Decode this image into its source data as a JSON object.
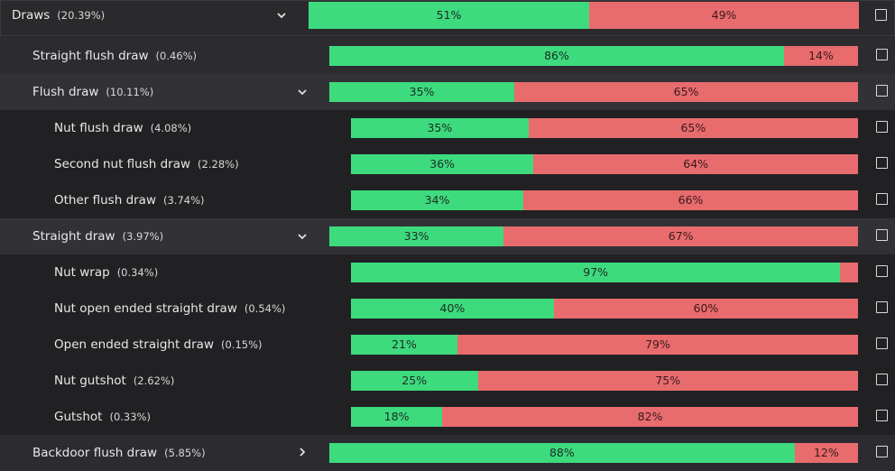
{
  "rows": [
    {
      "id": "draws",
      "label": "Draws",
      "pct": "(20.39%)",
      "level": 0,
      "chevron": "expanded",
      "eq": "51%",
      "other": "49%",
      "eq_frac": 0.51
    },
    {
      "id": "straight-flush-draw",
      "label": "Straight flush draw",
      "pct": "(0.46%)",
      "level": 1,
      "chevron": null,
      "eq": "86%",
      "other": "14%",
      "eq_frac": 0.86
    },
    {
      "id": "flush-draw",
      "label": "Flush draw",
      "pct": "(10.11%)",
      "level": 1,
      "chevron": "expanded",
      "eq": "35%",
      "other": "65%",
      "eq_frac": 0.35
    },
    {
      "id": "nut-flush-draw",
      "label": "Nut flush draw",
      "pct": "(4.08%)",
      "level": 2,
      "chevron": null,
      "eq": "35%",
      "other": "65%",
      "eq_frac": 0.35
    },
    {
      "id": "second-nut-flush-draw",
      "label": "Second nut flush draw",
      "pct": "(2.28%)",
      "level": 2,
      "chevron": null,
      "eq": "36%",
      "other": "64%",
      "eq_frac": 0.36
    },
    {
      "id": "other-flush-draw",
      "label": "Other flush draw",
      "pct": "(3.74%)",
      "level": 2,
      "chevron": null,
      "eq": "34%",
      "other": "66%",
      "eq_frac": 0.34
    },
    {
      "id": "straight-draw",
      "label": "Straight draw",
      "pct": "(3.97%)",
      "level": 1,
      "chevron": "expanded",
      "eq": "33%",
      "other": "67%",
      "eq_frac": 0.33
    },
    {
      "id": "nut-wrap",
      "label": "Nut wrap",
      "pct": "(0.34%)",
      "level": 2,
      "chevron": null,
      "eq": "97%",
      "other": "",
      "eq_frac": 0.965
    },
    {
      "id": "nut-oesd",
      "label": "Nut open ended straight draw",
      "pct": "(0.54%)",
      "level": 2,
      "chevron": null,
      "eq": "40%",
      "other": "60%",
      "eq_frac": 0.4
    },
    {
      "id": "oesd",
      "label": "Open ended straight draw",
      "pct": "(0.15%)",
      "level": 2,
      "chevron": null,
      "eq": "21%",
      "other": "79%",
      "eq_frac": 0.21
    },
    {
      "id": "nut-gutshot",
      "label": "Nut gutshot",
      "pct": "(2.62%)",
      "level": 2,
      "chevron": null,
      "eq": "25%",
      "other": "75%",
      "eq_frac": 0.25
    },
    {
      "id": "gutshot",
      "label": "Gutshot",
      "pct": "(0.33%)",
      "level": 2,
      "chevron": null,
      "eq": "18%",
      "other": "82%",
      "eq_frac": 0.18
    },
    {
      "id": "backdoor-flush-draw",
      "label": "Backdoor flush draw",
      "pct": "(5.85%)",
      "level": 1,
      "chevron": "collapsed",
      "eq": "88%",
      "other": "12%",
      "eq_frac": 0.88
    }
  ],
  "icons": {
    "expanded": "chevron-down-icon",
    "collapsed": "chevron-right-icon"
  },
  "colors": {
    "equity": "#3ddb7e",
    "other": "#e86b6e"
  }
}
